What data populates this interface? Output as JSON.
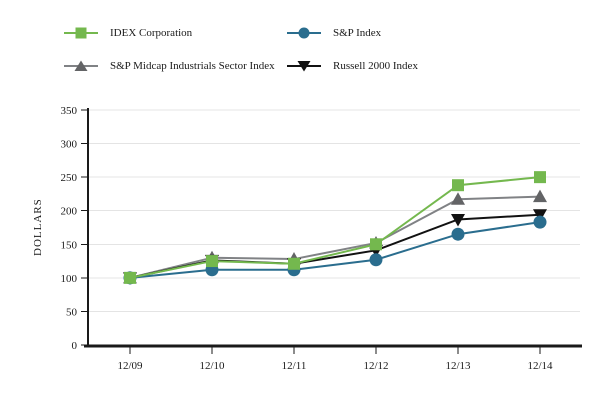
{
  "page": {
    "background": "#ffffff"
  },
  "legend": {
    "items": [
      {
        "label": "IDEX Corporation",
        "marker": "square",
        "color": "#74b84e"
      },
      {
        "label": "S&P Index",
        "marker": "circle",
        "color": "#2a6d8e"
      },
      {
        "label": "S&P Midcap Industrials Sector Index",
        "marker": "triangle-up",
        "color": "#636466",
        "line_color": "#808285"
      },
      {
        "label": "Russell 2000 Index",
        "marker": "triangle-down",
        "color": "#121212"
      }
    ]
  },
  "chart_data": {
    "type": "line",
    "title": "",
    "x": [
      "12/09",
      "12/10",
      "12/11",
      "12/12",
      "12/13",
      "12/14"
    ],
    "series": [
      {
        "name": "IDEX Corporation",
        "marker": "square",
        "color": "#74b84e",
        "values": [
          100,
          125,
          121,
          150,
          238,
          250
        ]
      },
      {
        "name": "S&P Index",
        "marker": "circle",
        "color": "#2a6d8e",
        "values": [
          100,
          112,
          112,
          127,
          165,
          183
        ]
      },
      {
        "name": "S&P Midcap Industrials Sector Index",
        "marker": "triangle-up",
        "color": "#636466",
        "line_color": "#808285",
        "values": [
          100,
          130,
          128,
          152,
          217,
          221
        ]
      },
      {
        "name": "Russell 2000 Index",
        "marker": "triangle-down",
        "color": "#121212",
        "values": [
          100,
          126,
          121,
          141,
          187,
          194
        ]
      }
    ],
    "xlabel": "",
    "ylabel": "DOLLARS",
    "ylim": [
      0,
      350
    ],
    "yticks": [
      0,
      50,
      100,
      150,
      200,
      250,
      300,
      350
    ],
    "grid": true,
    "grid_color": "#e4e4e4",
    "axis_color": "#1a1a1a",
    "legend_position": "top"
  }
}
